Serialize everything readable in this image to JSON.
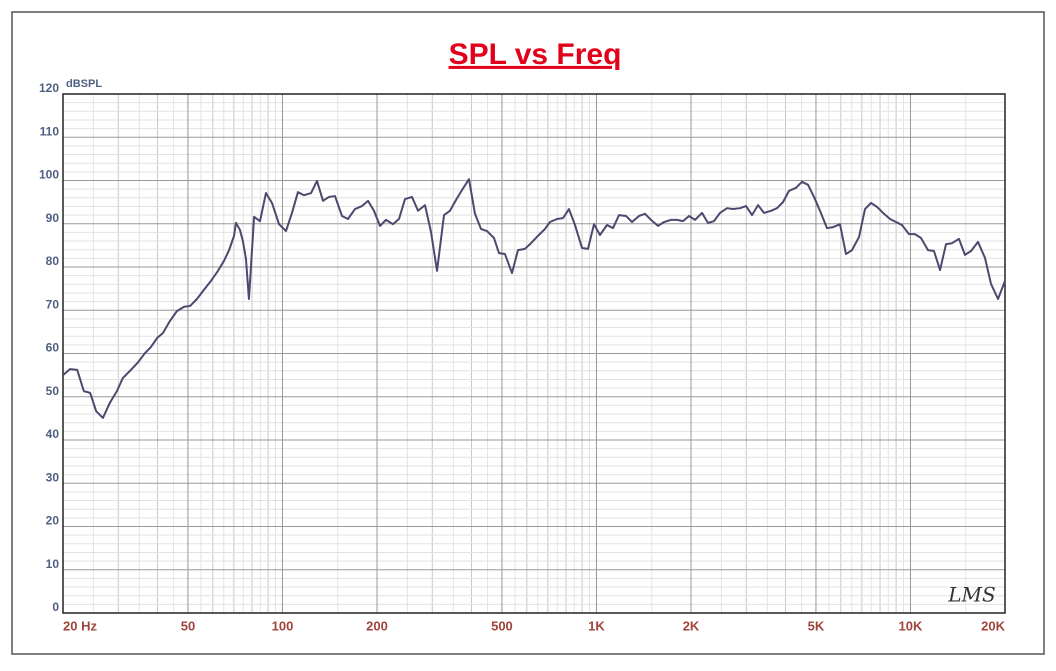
{
  "chart_data": {
    "type": "line",
    "title": "SPL vs Freq",
    "y_label": "dBSPL",
    "logo": "LMS",
    "color": "#4b4a6e",
    "xscale": "log",
    "grid": true,
    "xlim": [
      20,
      20000
    ],
    "ylim": [
      0,
      120
    ],
    "xticks": [
      {
        "value": 20,
        "label": "20 Hz"
      },
      50,
      100,
      200,
      500,
      {
        "value": 1000,
        "label": "1K"
      },
      {
        "value": 2000,
        "label": "2K"
      },
      {
        "value": 5000,
        "label": "5K"
      },
      {
        "value": 10000,
        "label": "10K"
      },
      {
        "value": 20000,
        "label": "20K"
      }
    ],
    "yticks": [
      0,
      10,
      20,
      30,
      40,
      50,
      60,
      70,
      80,
      90,
      100,
      110,
      120
    ],
    "x": [
      20,
      21.05,
      22.2,
      23.3,
      24.4,
      25.5,
      26.8,
      28.2,
      29.7,
      31.0,
      32.9,
      34.7,
      36.5,
      38.1,
      39.9,
      41.6,
      43.8,
      46.1,
      48.6,
      50.8,
      53.4,
      56.2,
      59.2,
      62.3,
      65.1,
      67.6,
      70.1,
      71.1,
      73.2,
      74.8,
      76.5,
      78.2,
      81.2,
      84.8,
      88.6,
      92.6,
      97.5,
      102.6,
      107.2,
      112.0,
      117.1,
      123.3,
      128.8,
      134.6,
      140.6,
      147.0,
      154.7,
      161.6,
      170.2,
      179.2,
      187.3,
      195.6,
      204.4,
      213.6,
      224.9,
      235.0,
      245.6,
      258.5,
      270.2,
      284.4,
      297.2,
      310.6,
      326.9,
      341.6,
      357.0,
      373.1,
      392.6,
      410.3,
      428.8,
      448.1,
      471.7,
      489.2,
      511.2,
      538.2,
      562.3,
      591.9,
      618.6,
      651.2,
      685.5,
      711.2,
      748.5,
      782.3,
      817.5,
      854.3,
      899.3,
      939.7,
      982.0,
      1026,
      1080,
      1129,
      1180,
      1242,
      1298,
      1366,
      1427,
      1491,
      1570,
      1641,
      1727,
      1805,
      1886,
      1971,
      2060,
      2168,
      2265,
      2367,
      2474,
      2604,
      2722,
      2865,
      2994,
      3129,
      3270,
      3416,
      3596,
      3758,
      3926,
      4103,
      4319,
      4513,
      4717,
      4929,
      5151,
      5421,
      5666,
      5963,
      6232,
      6512,
      6855,
      7164,
      7486,
      7823,
      8236,
      8606,
      8994,
      9397,
      9892,
      10330,
      10800,
      11370,
      11880,
      12420,
      12980,
      13560,
      14270,
      14910,
      15590,
      16410,
      17270,
      18050,
      19000,
      20000
    ],
    "values": [
      55.0,
      56.4,
      56.2,
      51.3,
      50.9,
      46.7,
      45.1,
      48.6,
      51.3,
      54.3,
      56.2,
      58.0,
      60.1,
      61.5,
      63.6,
      64.7,
      67.5,
      69.8,
      70.8,
      71.0,
      72.6,
      74.7,
      76.8,
      79.1,
      81.4,
      83.9,
      87.2,
      90.2,
      88.6,
      86.0,
      81.9,
      72.6,
      91.6,
      90.6,
      97.1,
      94.8,
      89.9,
      88.3,
      92.5,
      97.3,
      96.6,
      97.1,
      99.9,
      95.3,
      96.2,
      96.4,
      91.8,
      91.1,
      93.4,
      94.1,
      95.3,
      93.0,
      89.5,
      90.9,
      89.9,
      91.1,
      95.7,
      96.2,
      93.0,
      94.3,
      88.1,
      79.1,
      92.0,
      93.0,
      95.5,
      97.8,
      100.3,
      92.3,
      88.8,
      88.3,
      86.7,
      83.2,
      83.0,
      78.6,
      83.9,
      84.2,
      85.5,
      87.2,
      88.8,
      90.4,
      91.1,
      91.3,
      93.4,
      89.7,
      84.4,
      84.2,
      89.9,
      87.4,
      89.7,
      89.0,
      92.0,
      91.8,
      90.4,
      91.8,
      92.3,
      90.9,
      89.5,
      90.4,
      90.9,
      90.9,
      90.6,
      91.8,
      90.9,
      92.5,
      90.2,
      90.6,
      92.5,
      93.6,
      93.4,
      93.6,
      94.1,
      92.0,
      94.3,
      92.5,
      93.0,
      93.6,
      95.0,
      97.6,
      98.3,
      99.7,
      99.0,
      96.2,
      93.0,
      89.0,
      89.2,
      89.9,
      83.0,
      83.9,
      86.9,
      93.4,
      94.8,
      93.9,
      92.3,
      91.1,
      90.4,
      89.7,
      87.6,
      87.6,
      86.7,
      83.9,
      83.7,
      79.3,
      85.3,
      85.5,
      86.5,
      82.8,
      83.7,
      85.8,
      82.1,
      76.1,
      72.6,
      76.8
    ]
  }
}
